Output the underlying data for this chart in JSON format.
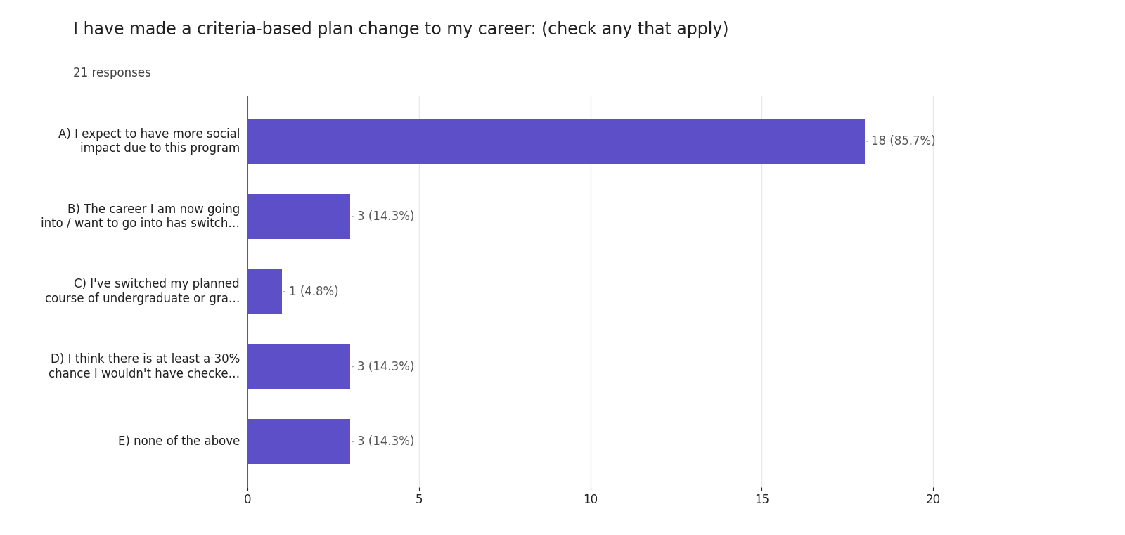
{
  "title": "I have made a criteria-based plan change to my career: (check any that apply)",
  "subtitle": "21 responses",
  "categories": [
    "A) I expect to have more social\nimpact due to this program",
    "B) The career I am now going\ninto / want to go into has switch…",
    "C) I've switched my planned\ncourse of undergraduate or gra…",
    "D) I think there is at least a 30%\nchance I wouldn't have checke…",
    "E) none of the above"
  ],
  "values": [
    18,
    3,
    1,
    3,
    3
  ],
  "labels": [
    "18 (85.7%)",
    "3 (14.3%)",
    "1 (4.8%)",
    "3 (14.3%)",
    "3 (14.3%)"
  ],
  "bar_color": "#5c4fc7",
  "background_color": "#ffffff",
  "xlim": [
    0,
    21
  ],
  "xticks": [
    0,
    5,
    10,
    15,
    20
  ],
  "title_fontsize": 17,
  "subtitle_fontsize": 12,
  "ylabel_fontsize": 12,
  "label_fontsize": 12,
  "tick_fontsize": 12,
  "bar_height": 0.6,
  "grid_color": "#e8e8e8",
  "spine_color": "#c0c0c0",
  "label_color": "#555555",
  "title_color": "#212121",
  "subtitle_color": "#444444"
}
